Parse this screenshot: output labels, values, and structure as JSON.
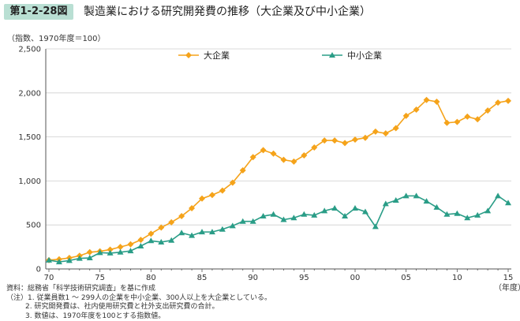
{
  "figure": {
    "label": "第1-2-28図",
    "title": "製造業における研究開発費の推移（大企業及び中小企業）"
  },
  "chart_data": {
    "type": "line",
    "ylabel": "（指数、1970年度＝100）",
    "xlabel": "（年度）",
    "ylim": [
      0,
      2500
    ],
    "yticks": [
      0,
      500,
      1000,
      1500,
      2000,
      2500
    ],
    "ytick_labels": [
      "0",
      "500",
      "1,000",
      "1,500",
      "2,000",
      "2,500"
    ],
    "xticks": [
      1970,
      1975,
      1980,
      1985,
      1990,
      1995,
      2000,
      2005,
      2010,
      2015
    ],
    "xtick_labels": [
      "70",
      "75",
      "80",
      "85",
      "90",
      "95",
      "00",
      "05",
      "10",
      "15"
    ],
    "grid": "horizontal",
    "legend_position": "top",
    "x": [
      1970,
      1971,
      1972,
      1973,
      1974,
      1975,
      1976,
      1977,
      1978,
      1979,
      1980,
      1981,
      1982,
      1983,
      1984,
      1985,
      1986,
      1987,
      1988,
      1989,
      1990,
      1991,
      1992,
      1993,
      1994,
      1995,
      1996,
      1997,
      1998,
      1999,
      2000,
      2001,
      2002,
      2003,
      2004,
      2005,
      2006,
      2007,
      2008,
      2009,
      2010,
      2011,
      2012,
      2013,
      2014,
      2015
    ],
    "series": [
      {
        "name": "大企業",
        "color": "#f5a31a",
        "marker": "diamond",
        "values": [
          100,
          110,
          125,
          150,
          190,
          200,
          220,
          250,
          280,
          330,
          400,
          470,
          530,
          600,
          690,
          800,
          840,
          890,
          980,
          1120,
          1270,
          1350,
          1310,
          1240,
          1220,
          1290,
          1380,
          1460,
          1460,
          1430,
          1470,
          1490,
          1560,
          1540,
          1600,
          1740,
          1810,
          1920,
          1900,
          1660,
          1670,
          1730,
          1700,
          1800,
          1890,
          1910
        ]
      },
      {
        "name": "中小企業",
        "color": "#2a9d87",
        "marker": "triangle",
        "values": [
          100,
          80,
          95,
          120,
          125,
          185,
          180,
          190,
          205,
          260,
          320,
          305,
          325,
          410,
          380,
          420,
          420,
          450,
          490,
          540,
          540,
          600,
          620,
          560,
          580,
          620,
          610,
          660,
          690,
          600,
          690,
          650,
          480,
          740,
          780,
          830,
          830,
          770,
          700,
          620,
          630,
          580,
          610,
          660,
          830,
          750
        ]
      }
    ]
  },
  "notes": [
    "資料：総務省「科学技術研究調査」を基に作成",
    "（注）1. 従業員数1 ～ 299人の企業を中小企業、300人以上を大企業としている。",
    "2. 研究開発費は、社内使用研究費と社外支出研究費の合計。",
    "3. 数値は、1970年度を100とする指数値。"
  ]
}
